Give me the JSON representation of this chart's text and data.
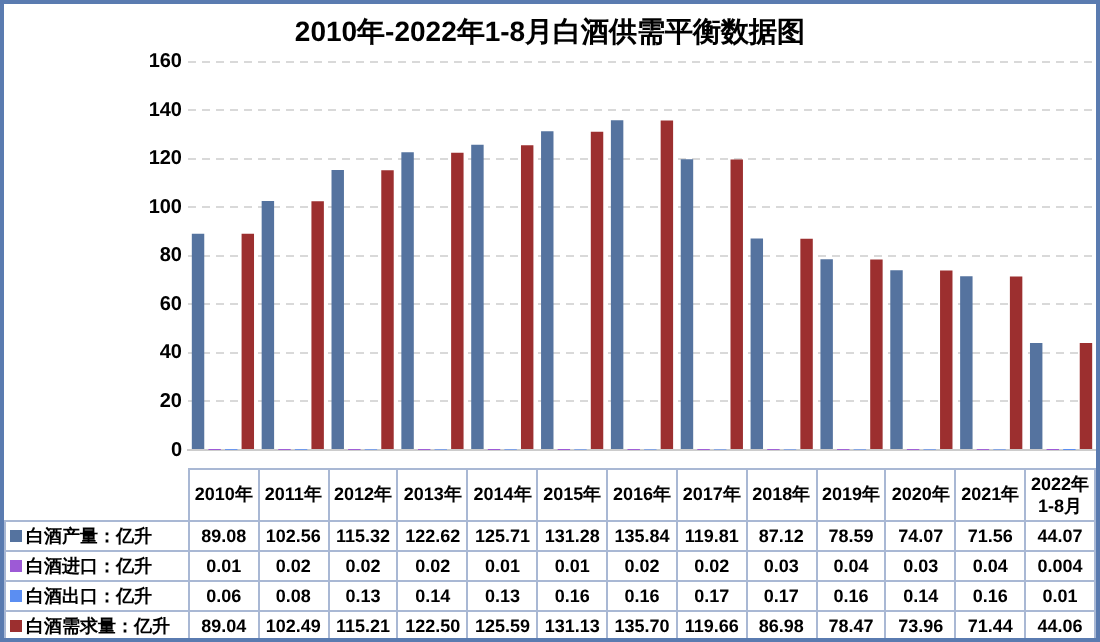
{
  "chart_data": {
    "type": "bar",
    "title": "2010年-2022年1-8月白酒供需平衡数据图",
    "categories": [
      "2010年",
      "2011年",
      "2012年",
      "2013年",
      "2014年",
      "2015年",
      "2016年",
      "2017年",
      "2018年",
      "2019年",
      "2020年",
      "2021年",
      "2022年1-8月"
    ],
    "series": [
      {
        "name": "白酒产量：亿升",
        "color": "#55739f",
        "values": [
          89.08,
          102.56,
          115.32,
          122.62,
          125.71,
          131.28,
          135.84,
          119.81,
          87.12,
          78.59,
          74.07,
          71.56,
          44.07
        ],
        "value_labels": [
          "89.08",
          "102.56",
          "115.32",
          "122.62",
          "125.71",
          "131.28",
          "135.84",
          "119.81",
          "87.12",
          "78.59",
          "74.07",
          "71.56",
          "44.07"
        ]
      },
      {
        "name": "白酒进口：亿升",
        "color": "#9d5ad6",
        "values": [
          0.01,
          0.02,
          0.02,
          0.02,
          0.01,
          0.01,
          0.02,
          0.02,
          0.03,
          0.04,
          0.03,
          0.04,
          0.004
        ],
        "value_labels": [
          "0.01",
          "0.02",
          "0.02",
          "0.02",
          "0.01",
          "0.01",
          "0.02",
          "0.02",
          "0.03",
          "0.04",
          "0.03",
          "0.04",
          "0.004"
        ]
      },
      {
        "name": "白酒出口：亿升",
        "color": "#5b8ef2",
        "values": [
          0.06,
          0.08,
          0.13,
          0.14,
          0.13,
          0.16,
          0.16,
          0.17,
          0.17,
          0.16,
          0.14,
          0.16,
          0.01
        ],
        "value_labels": [
          "0.06",
          "0.08",
          "0.13",
          "0.14",
          "0.13",
          "0.16",
          "0.16",
          "0.17",
          "0.17",
          "0.16",
          "0.14",
          "0.16",
          "0.01"
        ]
      },
      {
        "name": "白酒需求量：亿升",
        "color": "#9c2f2f",
        "values": [
          89.04,
          102.49,
          115.21,
          122.5,
          125.59,
          131.13,
          135.7,
          119.66,
          86.98,
          78.47,
          73.96,
          71.44,
          44.06
        ],
        "value_labels": [
          "89.04",
          "102.49",
          "115.21",
          "122.50",
          "125.59",
          "131.13",
          "135.70",
          "119.66",
          "86.98",
          "78.47",
          "73.96",
          "71.44",
          "44.06"
        ]
      }
    ],
    "ylim": [
      0,
      160
    ],
    "yticks": [
      0,
      20,
      40,
      60,
      80,
      100,
      120,
      140,
      160
    ],
    "grid": "y",
    "legend": "bottom left"
  }
}
